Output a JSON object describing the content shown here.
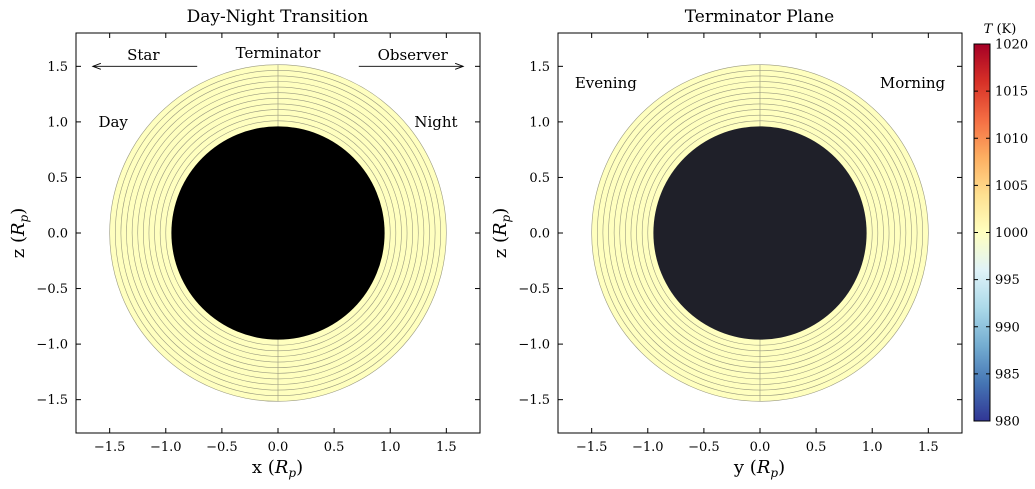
{
  "chart_data": [
    {
      "type": "other",
      "title": "Day-Night Transition",
      "xlabel": "x (R_p)",
      "ylabel": "z (R_p)",
      "xlim": [
        -1.8,
        1.8
      ],
      "ylim": [
        -1.8,
        1.8
      ],
      "xticks": [
        -1.5,
        -1.0,
        -0.5,
        0.0,
        0.5,
        1.0,
        1.5
      ],
      "yticks": [
        -1.5,
        -1.0,
        -0.5,
        0.0,
        0.5,
        1.0,
        1.5
      ],
      "x_tick_labels": [
        "−1.5",
        "−1.0",
        "−0.5",
        "0.0",
        "0.5",
        "1.0",
        "1.5"
      ],
      "y_tick_labels": [
        "−1.5",
        "−1.0",
        "−0.5",
        "0.0",
        "0.5",
        "1.0",
        "1.5"
      ],
      "planet_radius": 0.95,
      "atmosphere_outer_radius": 1.5,
      "atmosphere_layer_radii": [
        1.0,
        1.05,
        1.1,
        1.15,
        1.2,
        1.25,
        1.3,
        1.35,
        1.4,
        1.45,
        1.5
      ],
      "planet_color": "#000000",
      "atmosphere_color": "#ffffbf",
      "annotations": {
        "star": "Star",
        "terminator": "Terminator",
        "observer": "Observer",
        "day": "Day",
        "night": "Night"
      },
      "arrows": [
        {
          "from": [
            -0.72,
            1.5
          ],
          "to": [
            -1.65,
            1.5
          ],
          "label": "Star"
        },
        {
          "from": [
            0.72,
            1.5
          ],
          "to": [
            1.65,
            1.5
          ],
          "label": "Observer"
        }
      ],
      "x_label_main": "x",
      "y_label_main": "z",
      "unit": "R",
      "unit_sub": "p"
    },
    {
      "type": "other",
      "title": "Terminator Plane",
      "xlabel": "y (R_p)",
      "ylabel": "z (R_p)",
      "xlim": [
        -1.8,
        1.8
      ],
      "ylim": [
        -1.8,
        1.8
      ],
      "xticks": [
        -1.5,
        -1.0,
        -0.5,
        0.0,
        0.5,
        1.0,
        1.5
      ],
      "yticks": [
        -1.5,
        -1.0,
        -0.5,
        0.0,
        0.5,
        1.0,
        1.5
      ],
      "x_tick_labels": [
        "−1.5",
        "−1.0",
        "−0.5",
        "0.0",
        "0.5",
        "1.0",
        "1.5"
      ],
      "y_tick_labels": [
        "−1.5",
        "−1.0",
        "−0.5",
        "0.0",
        "0.5",
        "1.0",
        "1.5"
      ],
      "planet_radius": 0.95,
      "atmosphere_outer_radius": 1.5,
      "atmosphere_layer_radii": [
        1.0,
        1.05,
        1.1,
        1.15,
        1.2,
        1.25,
        1.3,
        1.35,
        1.4,
        1.45,
        1.5
      ],
      "planet_color": "#1f2029",
      "atmosphere_color": "#ffffbf",
      "annotations": {
        "evening": "Evening",
        "morning": "Morning"
      },
      "x_label_main": "y",
      "y_label_main": "z",
      "unit": "R",
      "unit_sub": "p"
    },
    {
      "type": "colorbar",
      "label_main": "T",
      "label_unit": "(K)",
      "range": [
        980,
        1020
      ],
      "ticks": [
        980,
        985,
        990,
        995,
        1000,
        1005,
        1010,
        1015,
        1020
      ],
      "tick_labels": [
        "980",
        "985",
        "990",
        "995",
        "1000",
        "1005",
        "1010",
        "1015",
        "1020"
      ],
      "colormap": [
        "#313695",
        "#4575b4",
        "#74add1",
        "#abd9e9",
        "#e0f3f8",
        "#ffffbf",
        "#fee090",
        "#fdae61",
        "#f46d43",
        "#d73027",
        "#a50026"
      ]
    }
  ]
}
